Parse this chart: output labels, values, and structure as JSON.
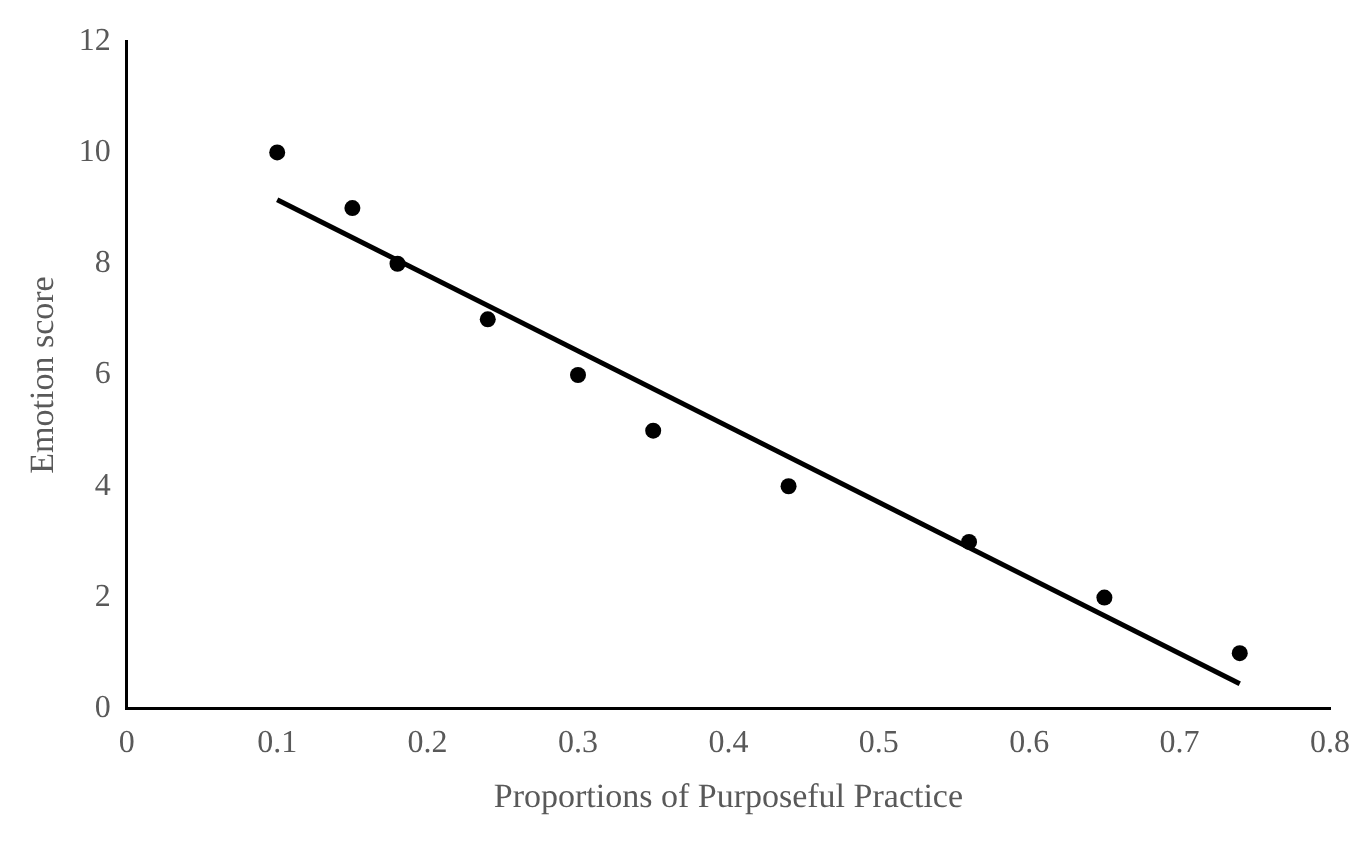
{
  "chart_data": {
    "type": "scatter",
    "xlabel": "Proportions of Purposeful Practice",
    "ylabel": "Emotion score",
    "xlim": [
      0,
      0.8
    ],
    "ylim": [
      0,
      12
    ],
    "xticks": [
      0,
      0.1,
      0.2,
      0.3,
      0.4,
      0.5,
      0.6,
      0.7,
      0.8
    ],
    "yticks": [
      0,
      2,
      4,
      6,
      8,
      10,
      12
    ],
    "grid": false,
    "legend": false,
    "marker": "circle",
    "series": [
      {
        "color": "#000000",
        "x": [
          0.1,
          0.15,
          0.18,
          0.24,
          0.3,
          0.35,
          0.44,
          0.56,
          0.65,
          0.74
        ],
        "values": [
          10,
          9,
          8,
          7,
          6,
          5,
          4,
          3,
          2,
          1
        ]
      },
      {
        "type": "line",
        "color": "#000000",
        "x": [
          0.1,
          0.74
        ],
        "values": [
          9.15,
          0.45
        ],
        "marker": "none",
        "line_style": "solid"
      }
    ]
  }
}
